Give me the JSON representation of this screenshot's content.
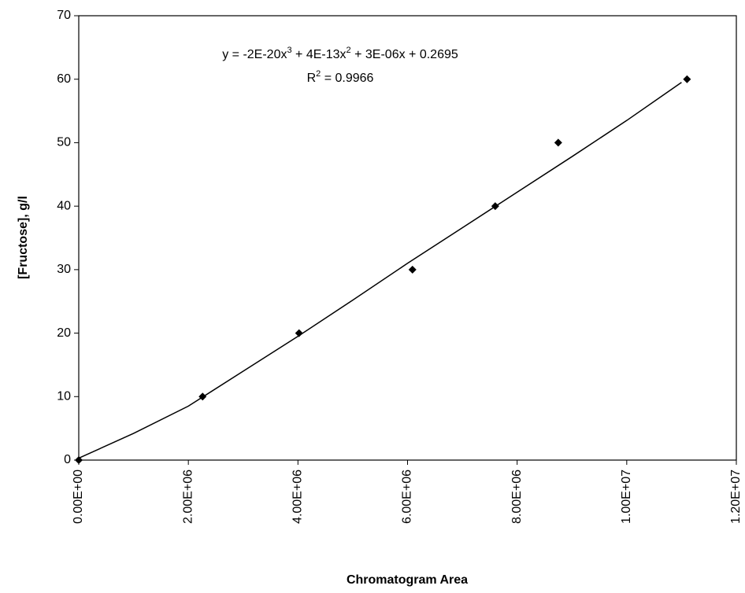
{
  "chart_data": {
    "type": "scatter",
    "xlabel": "Chromatogram Area",
    "ylabel": "[Fructose], g/l",
    "equation": [
      "y = -2E-20x",
      "3",
      " + 4E-13x",
      "2",
      " + 3E-06x + 0.2695"
    ],
    "r_squared": [
      "R",
      "2",
      " = 0.9966"
    ],
    "series": [
      {
        "style": "markers",
        "color": "#000000",
        "x": [
          0,
          2260000,
          4020000,
          6090000,
          7600000,
          8750000,
          11100000
        ],
        "values": [
          0,
          10,
          20,
          30,
          40,
          50,
          60
        ]
      },
      {
        "style": "line",
        "color": "#000000",
        "x": [
          0,
          1000000,
          2000000,
          3000000,
          4000000,
          5000000,
          6000000,
          7000000,
          8000000,
          9000000,
          10000000,
          11000000
        ],
        "values": [
          0.3,
          4.2,
          8.5,
          14,
          19.5,
          25.2,
          31,
          36.6,
          42.2,
          47.8,
          53.5,
          59.5
        ]
      }
    ],
    "xlim": [
      0,
      12000000
    ],
    "xticks": [
      {
        "value": 0,
        "label": "0.00E+00"
      },
      {
        "value": 2000000,
        "label": "2.00E+06"
      },
      {
        "value": 4000000,
        "label": "4.00E+06"
      },
      {
        "value": 6000000,
        "label": "6.00E+06"
      },
      {
        "value": 8000000,
        "label": "8.00E+06"
      },
      {
        "value": 10000000,
        "label": "1.00E+07"
      },
      {
        "value": 12000000,
        "label": "1.20E+07"
      }
    ],
    "ylim": [
      0,
      70
    ],
    "yticks": [
      0,
      10,
      20,
      30,
      40,
      50,
      60,
      70
    ],
    "grid": false
  }
}
